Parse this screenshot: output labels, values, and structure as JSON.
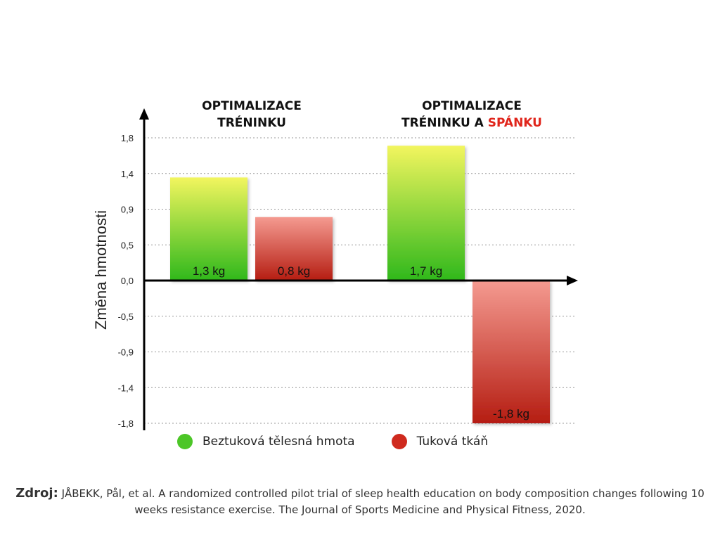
{
  "group_titles": [
    {
      "line1": "OPTIMALIZACE",
      "line2": "TRÉNINKU",
      "highlight": ""
    },
    {
      "line1": "OPTIMALIZACE",
      "line2": "TRÉNINKU A ",
      "highlight": "SPÁNKU"
    }
  ],
  "legend": [
    {
      "label": "Beztuková tělesná hmota",
      "color": "#4cc627"
    },
    {
      "label": "Tuková tkáň",
      "color": "#cf2a1e"
    }
  ],
  "source": {
    "label": "Zdroj:",
    "text": "JÅBEKK, Pål, et al. A randomized controlled pilot trial of sleep health education on body composition changes following 10 weeks resistance exercise. The Journal of Sports Medicine and Physical Fitness, 2020."
  },
  "chart_data": {
    "type": "bar",
    "ylabel": "Změna hmotnosti",
    "yticks": [
      "1,8",
      "1,4",
      "0,9",
      "0,5",
      "0,0",
      "-0,5",
      "-0,9",
      "-1,4",
      "-1,8"
    ],
    "ylim": [
      -1.8,
      1.8
    ],
    "grid": true,
    "legend_position": "bottom",
    "categories": [
      "OPTIMALIZACE TRÉNINKU",
      "OPTIMALIZACE TRÉNINKU A SPÁNKU"
    ],
    "series": [
      {
        "name": "Beztuková tělesná hmota",
        "values": [
          1.3,
          1.7
        ],
        "labels": [
          "1,3 kg",
          "1,7 kg"
        ],
        "color_top": "#f2f55e",
        "color_bottom": "#2fb81c"
      },
      {
        "name": "Tuková tkáň",
        "values": [
          0.8,
          -1.8
        ],
        "labels": [
          "0,8 kg",
          "-1,8 kg"
        ],
        "color_top": "#f49a90",
        "color_bottom": "#b51d12"
      }
    ]
  }
}
